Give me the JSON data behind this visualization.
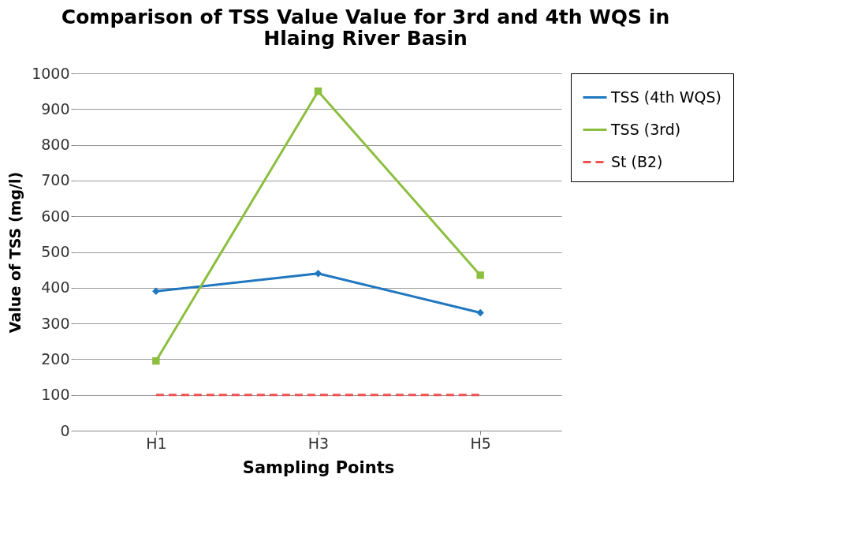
{
  "chart_data": {
    "type": "line",
    "title": "Comparison of TSS Value Value for 3rd and 4th WQS in Hlaing River Basin",
    "xlabel": "Sampling Points",
    "ylabel": "Value of TSS (mg/l)",
    "categories": [
      "H1",
      "H3",
      "H5"
    ],
    "ylim": [
      0,
      1000
    ],
    "yticks": [
      0,
      100,
      200,
      300,
      400,
      500,
      600,
      700,
      800,
      900,
      1000
    ],
    "grid": "y",
    "legend": "right",
    "series": [
      {
        "name": "TSS (4th WQS)",
        "color": "#1f77bf",
        "values": [
          390,
          440,
          330
        ],
        "marker": "diamond",
        "line_style": "solid"
      },
      {
        "name": "TSS (3rd)",
        "color": "#8cbf3f",
        "values": [
          195,
          950,
          435
        ],
        "marker": "square",
        "line_style": "solid"
      },
      {
        "name": "St (B2)",
        "color": "#f05050",
        "values": [
          100,
          100,
          100
        ],
        "marker": "none",
        "line_style": "dashed"
      }
    ]
  }
}
